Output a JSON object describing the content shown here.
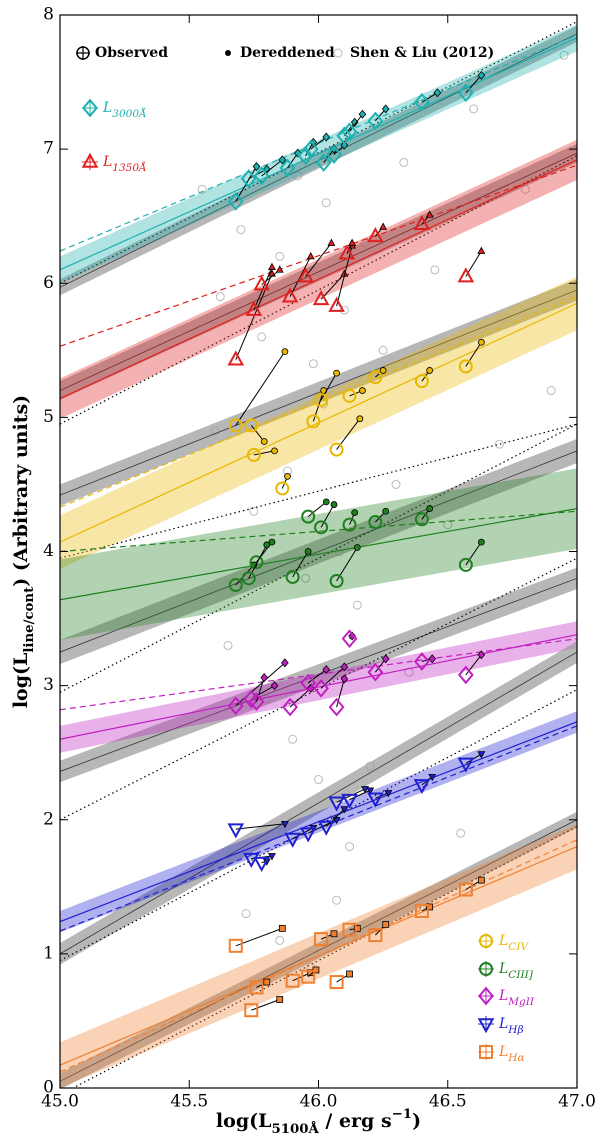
{
  "chart_data": {
    "type": "scatter",
    "xlabel": "log(L5100Å / erg s−1)",
    "ylabel": "log(Lline/cont) (Arbitrary units)",
    "xlim": [
      45,
      47
    ],
    "ylim": [
      0,
      8
    ],
    "xticks": [
      {
        "value": 45,
        "label": "45.0"
      },
      45.5,
      {
        "value": 46,
        "label": "46.0"
      },
      46.5,
      {
        "value": 47,
        "label": "47.0"
      }
    ],
    "yticks": [
      0,
      1,
      2,
      3,
      4,
      5,
      6,
      7,
      8
    ],
    "legend": {
      "observed": "Observed",
      "dereddened": "Dereddened",
      "comparison": "Shen & Liu (2012)"
    },
    "comparison": {
      "color": "#bbbbbb",
      "x": [
        45.55,
        45.62,
        45.7,
        45.78,
        45.85,
        45.92,
        45.98,
        46.03,
        46.1,
        46.18,
        46.25,
        46.33,
        46.45,
        46.6,
        46.8,
        46.95,
        45.6,
        45.75,
        45.88,
        45.95,
        46.02,
        46.08,
        46.15,
        46.3,
        46.5,
        46.7,
        46.9,
        45.65,
        45.8,
        45.9,
        46.0,
        46.05,
        46.12,
        46.2,
        46.35,
        46.55,
        45.72,
        45.85,
        45.97,
        46.07
      ],
      "y": [
        6.7,
        5.9,
        6.4,
        5.6,
        6.2,
        6.8,
        5.4,
        6.6,
        5.8,
        6.3,
        5.5,
        6.9,
        6.1,
        7.3,
        6.7,
        7.7,
        4.9,
        4.3,
        4.6,
        3.8,
        5.1,
        4.0,
        3.6,
        4.5,
        4.2,
        4.8,
        5.2,
        3.3,
        2.9,
        2.6,
        2.3,
        2.0,
        1.8,
        2.4,
        3.1,
        1.9,
        1.3,
        1.1,
        0.9,
        1.4
      ]
    },
    "series": [
      {
        "name": "L3000Å",
        "color": "#1fb0b0",
        "marker": "diamond",
        "x": [
          45.68,
          45.73,
          45.78,
          45.88,
          45.95,
          45.97,
          46.02,
          46.06,
          46.1,
          46.12,
          46.22,
          46.4,
          46.57
        ],
        "y": [
          6.61,
          6.78,
          6.8,
          6.86,
          6.95,
          7.0,
          6.9,
          6.96,
          7.1,
          7.13,
          7.21,
          7.35,
          7.42
        ],
        "dered_x": [
          45.76,
          45.8,
          45.86,
          45.92,
          45.98,
          46.03,
          46.06,
          46.1,
          46.14,
          46.17,
          46.26,
          46.46,
          46.63
        ],
        "dered_y": [
          6.87,
          6.85,
          6.92,
          6.97,
          7.05,
          7.09,
          7.0,
          7.03,
          7.2,
          7.26,
          7.3,
          7.42,
          7.55
        ],
        "fit_y": [
          6.1,
          7.83
        ],
        "fit_band": 0.1,
        "dashed_y": [
          6.24,
          7.85
        ],
        "grey_y": [
          5.97,
          7.86
        ],
        "grey_band": 0.06,
        "dotted_y": [
          6.0,
          7.95
        ]
      },
      {
        "name": "L1350Å",
        "color": "#e02020",
        "marker": "triangle",
        "x": [
          45.68,
          45.75,
          45.78,
          45.89,
          45.95,
          46.01,
          46.07,
          46.11,
          46.22,
          46.4,
          46.57
        ],
        "y": [
          5.43,
          5.8,
          5.99,
          5.9,
          6.05,
          5.88,
          5.83,
          6.22,
          6.35,
          6.44,
          6.05
        ],
        "dered_x": [
          45.82,
          45.82,
          45.85,
          45.97,
          46.05,
          46.1,
          46.13,
          46.13,
          46.25,
          46.43,
          46.63
        ],
        "dered_y": [
          6.07,
          6.12,
          6.1,
          6.2,
          6.3,
          6.07,
          6.28,
          6.3,
          6.42,
          6.51,
          6.24
        ],
        "fit_y": [
          5.14,
          6.92
        ],
        "fit_band": 0.15,
        "dashed_y": [
          5.53,
          6.88
        ],
        "grey_y": [
          5.2,
          6.97
        ],
        "grey_band": 0.07,
        "dotted_y": [
          4.95,
          6.95
        ]
      },
      {
        "name": "LCIV",
        "color": "#e8b800",
        "marker": "circle",
        "x": [
          45.68,
          45.74,
          45.75,
          45.86,
          45.98,
          46.01,
          46.07,
          46.12,
          46.22,
          46.4,
          46.57
        ],
        "y": [
          4.94,
          4.94,
          4.72,
          4.47,
          4.97,
          5.13,
          4.76,
          5.16,
          5.3,
          5.27,
          5.38
        ],
        "dered_x": [
          45.87,
          45.79,
          45.83,
          45.88,
          46.02,
          46.07,
          46.16,
          46.17,
          46.25,
          46.43,
          46.63
        ],
        "dered_y": [
          5.49,
          4.82,
          4.75,
          4.56,
          5.2,
          5.33,
          4.99,
          5.2,
          5.35,
          5.35,
          5.56
        ],
        "fit_y": [
          4.07,
          5.85
        ],
        "fit_band": 0.2,
        "dashed_y": [
          4.33,
          5.9
        ],
        "grey_y": [
          4.42,
          5.95
        ],
        "grey_band": 0.08,
        "dotted_y": [
          3.95,
          4.95
        ]
      },
      {
        "name": "LCIII]",
        "color": "#208020",
        "marker": "circle",
        "x": [
          45.68,
          45.76,
          45.73,
          45.9,
          45.96,
          46.01,
          46.07,
          46.12,
          46.22,
          46.4,
          46.57
        ],
        "y": [
          3.75,
          3.92,
          3.8,
          3.81,
          4.26,
          4.18,
          3.78,
          4.2,
          4.22,
          4.24,
          3.9
        ],
        "dered_x": [
          45.75,
          45.82,
          45.8,
          45.96,
          46.03,
          46.06,
          46.15,
          46.14,
          46.26,
          46.43,
          46.63
        ],
        "dered_y": [
          3.9,
          4.07,
          4.05,
          4.0,
          4.37,
          4.35,
          4.03,
          4.29,
          4.3,
          4.32,
          4.07
        ],
        "fit_y": [
          3.64,
          4.32
        ],
        "fit_band": 0.3,
        "dashed_y": [
          4.0,
          4.3
        ],
        "grey_y": [
          3.25,
          4.75
        ],
        "grey_band": 0.09,
        "dotted_y": [
          2.95,
          4.95
        ]
      },
      {
        "name": "LMgII",
        "color": "#c020c0",
        "marker": "diamond",
        "x": [
          45.68,
          45.74,
          45.76,
          45.89,
          45.96,
          46.01,
          46.07,
          46.12,
          46.22,
          46.4,
          46.57
        ],
        "y": [
          2.85,
          2.9,
          2.88,
          2.84,
          3.02,
          2.98,
          2.84,
          3.35,
          3.1,
          3.18,
          3.08
        ],
        "dered_x": [
          45.87,
          45.83,
          45.79,
          45.97,
          46.03,
          46.1,
          46.1,
          46.13,
          46.26,
          46.44,
          46.63
        ],
        "dered_y": [
          3.17,
          3.0,
          3.06,
          2.98,
          3.12,
          3.14,
          3.05,
          3.37,
          3.2,
          3.2,
          3.23
        ],
        "fit_y": [
          2.6,
          3.38
        ],
        "fit_band": 0.1,
        "dashed_y": [
          2.82,
          3.35
        ],
        "grey_y": [
          2.36,
          3.8
        ],
        "grey_band": 0.08,
        "dotted_y": [
          2.0,
          3.95
        ]
      },
      {
        "name": "LHβ",
        "color": "#2020d0",
        "marker": "down-triangle",
        "x": [
          45.68,
          45.74,
          45.78,
          45.9,
          45.96,
          46.03,
          46.07,
          46.12,
          46.22,
          46.4,
          46.57
        ],
        "y": [
          1.93,
          1.71,
          1.68,
          1.86,
          1.9,
          1.95,
          2.13,
          2.15,
          2.16,
          2.26,
          2.42
        ],
        "dered_x": [
          45.87,
          45.82,
          45.8,
          45.98,
          46.07,
          46.1,
          46.18,
          46.2,
          46.27,
          46.44,
          46.63
        ],
        "dered_y": [
          1.97,
          1.73,
          1.69,
          1.94,
          2.0,
          2.08,
          2.23,
          2.22,
          2.2,
          2.32,
          2.49
        ],
        "fit_y": [
          1.24,
          2.73
        ],
        "fit_band": 0.08,
        "dashed_y": [
          1.17,
          2.7
        ],
        "grey_y": [
          1.0,
          3.25
        ],
        "grey_band": 0.08,
        "dotted_y": [
          0.95,
          2.97
        ]
      },
      {
        "name": "LHα",
        "color": "#f08030",
        "marker": "square",
        "x": [
          45.68,
          45.76,
          45.74,
          45.9,
          45.96,
          46.01,
          46.07,
          46.12,
          46.22,
          46.4,
          46.57
        ],
        "y": [
          1.06,
          0.75,
          0.58,
          0.8,
          0.83,
          1.11,
          0.79,
          1.18,
          1.14,
          1.32,
          1.48
        ],
        "dered_x": [
          45.86,
          45.8,
          45.85,
          45.97,
          45.99,
          46.06,
          46.12,
          46.15,
          46.26,
          46.43,
          46.63
        ],
        "dered_y": [
          1.19,
          0.79,
          0.66,
          0.86,
          0.88,
          1.15,
          0.85,
          1.19,
          1.22,
          1.35,
          1.55
        ],
        "fit_y": [
          0.17,
          1.8
        ],
        "fit_band": 0.17,
        "dashed_y": [
          0.12,
          1.85
        ],
        "grey_y": [
          0.05,
          2.0
        ],
        "grey_band": 0.06,
        "dotted_y": [
          -0.05,
          1.95
        ]
      }
    ]
  }
}
